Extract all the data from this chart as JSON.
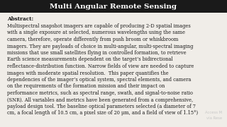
{
  "title": "Multi Angular Remote Sensing",
  "title_fontsize": 7.5,
  "background_color": "#f0ede8",
  "header_background": "#1a1a1a",
  "abstract_label": "Abstract:",
  "abstract_fontsize": 5.2,
  "body_lines": [
    "Multispectral snapshot imagers are capable of producing 2-D spatial images",
    "with a single exposure at selected, numerous wavelengths using the same",
    "camera, therefore, operate differently from push broom or whiskbroom",
    "imagers. They are payloads of choice in multi-angular, multi-spectral imaging",
    "missions that use small satellites flying in controlled formation, to retrieve",
    "Earth science measurements dependent on the target’s bidirectional",
    "reflectance-distribution function. Narrow fields of view are needed to capture",
    "images with moderate spatial resolution.  This paper quantifies the",
    "dependencies of the imager’s optical system, spectral elements, and camera",
    "on the requirements of the formation mission and their impact on",
    "performance metrics, such as spectral range, swath, and signal-to-noise ratio",
    "(SNR). All variables and metrics have been generated from a comprehensive,",
    "payload design tool. The baseline optical parameters selected (a diameter of 7",
    "cm, a focal length of 10.5 cm, a pixel size of 20 μm, and a field of view of 1.15°)"
  ],
  "body_fontsize": 4.8,
  "watermark_line1": "Access M",
  "watermark_line2": "via Rese",
  "watermark_color": "#c8c8c8",
  "watermark_fontsize": 3.8
}
